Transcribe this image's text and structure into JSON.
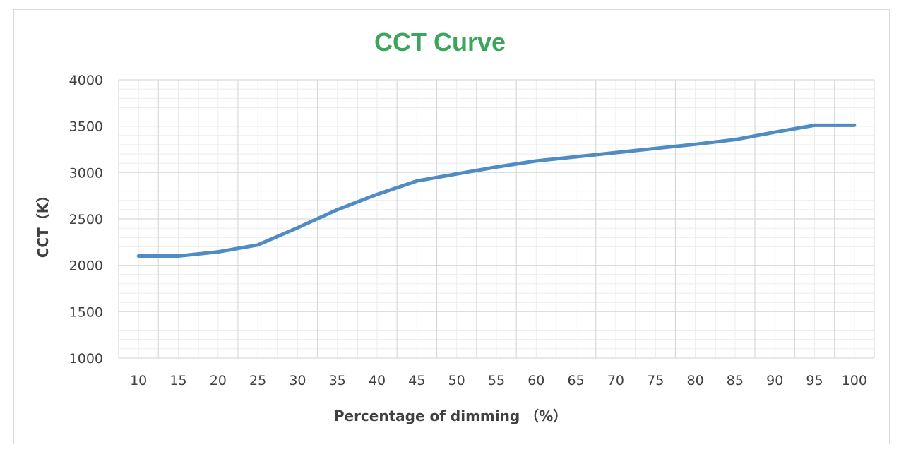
{
  "chart_data": {
    "type": "line",
    "title": "CCT Curve",
    "xlabel": "Percentage of dimming （%）",
    "ylabel": "CCT（K）",
    "x": [
      10,
      15,
      20,
      25,
      30,
      35,
      40,
      45,
      50,
      55,
      60,
      65,
      70,
      75,
      80,
      85,
      90,
      95,
      100
    ],
    "series": [
      {
        "values": [
          2100,
          2100,
          2145,
          2220,
          2405,
          2600,
          2765,
          2910,
          2985,
          3060,
          3125,
          3170,
          3215,
          3260,
          3305,
          3355,
          3435,
          3510,
          3510
        ]
      }
    ],
    "ylim": [
      1000,
      4000
    ],
    "yticks": [
      1000,
      1500,
      2000,
      2500,
      3000,
      3500,
      4000
    ],
    "grid": true,
    "minor_grid": true,
    "legend": "none",
    "colors": {
      "line": "#4f8cc4",
      "title": "#3ba55c",
      "grid": "#d9d9d9",
      "minor_grid": "#ececec",
      "text": "#404040"
    }
  }
}
